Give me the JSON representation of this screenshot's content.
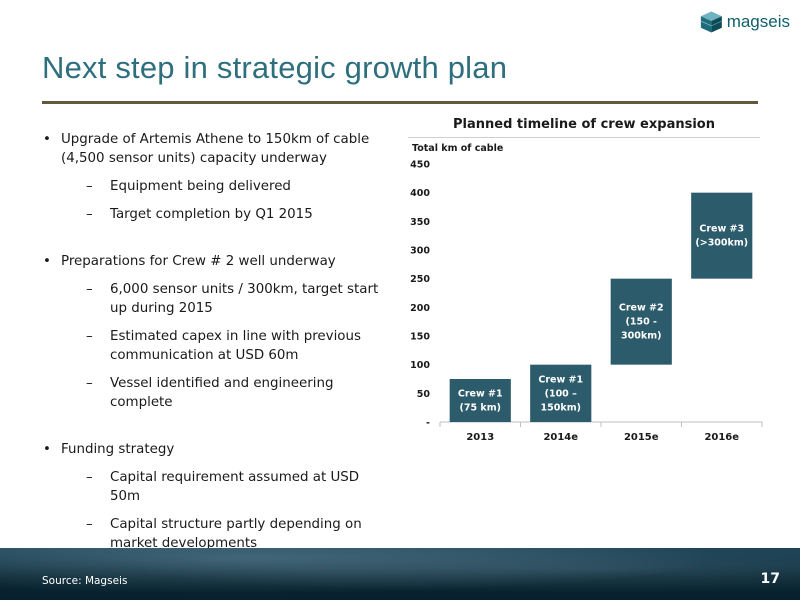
{
  "slide": {
    "title": "Next step in strategic growth plan",
    "source": "Source: Magseis",
    "page_number": "17"
  },
  "logo": {
    "text": "magseis"
  },
  "bullets": [
    {
      "text": "Upgrade of Artemis Athene to 150km of cable (4,500 sensor units) capacity underway",
      "sub": [
        "Equipment being delivered",
        "Target completion by Q1 2015"
      ]
    },
    {
      "text": "Preparations for Crew # 2 well underway",
      "sub": [
        "6,000 sensor units / 300km, target start up during 2015",
        "Estimated capex in line with previous communication at USD 60m",
        "Vessel identified and engineering complete"
      ]
    },
    {
      "text": "Funding strategy",
      "sub": [
        "Capital requirement assumed at USD 50m",
        "Capital structure partly depending on market developments"
      ]
    }
  ],
  "chart_data": {
    "type": "bar",
    "subtype": "floating",
    "title": "Planned timeline of crew expansion",
    "ylabel": "Total km of cable",
    "categories": [
      "2013",
      "2014e",
      "2015e",
      "2016e"
    ],
    "ylim": [
      0,
      450
    ],
    "yticks": [
      0,
      50,
      100,
      150,
      200,
      250,
      300,
      350,
      400,
      450
    ],
    "ytick_labels": [
      "-",
      "50",
      "100",
      "150",
      "200",
      "250",
      "300",
      "350",
      "400",
      "450"
    ],
    "bars": [
      {
        "category": "2013",
        "low": 0,
        "high": 75,
        "label": [
          "Crew #1",
          "(75 km)"
        ]
      },
      {
        "category": "2014e",
        "low": 0,
        "high": 100,
        "label": [
          "Crew #1",
          "(100 –",
          "150km)"
        ]
      },
      {
        "category": "2015e",
        "low": 100,
        "high": 250,
        "label": [
          "Crew #2",
          "(150 -",
          "300km)"
        ]
      },
      {
        "category": "2016e",
        "low": 250,
        "high": 400,
        "label": [
          "Crew #3",
          "(>300km)"
        ]
      }
    ],
    "bar_color": "#2c5b6b",
    "label_color": "#ffffff",
    "grid": false
  }
}
